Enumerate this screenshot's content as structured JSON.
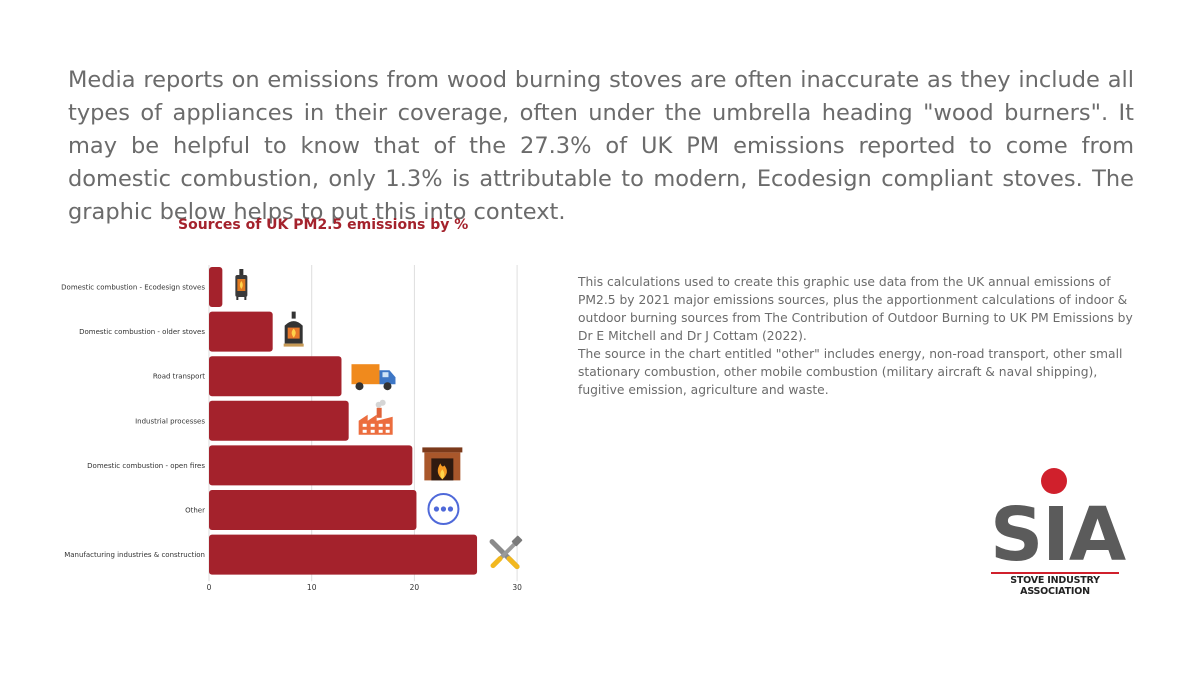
{
  "intro_text": "Media reports on emissions from wood burning stoves are often inaccurate as they include all types of appliances in their coverage, often under the umbrella heading \"wood burners\". It may be helpful to know that of the 27.3% of UK PM emissions reported to come from domestic combustion, only 1.3% is attributable to modern, Ecodesign compliant stoves. The graphic below helps to put this into context.",
  "chart_data": {
    "type": "bar",
    "orientation": "horizontal",
    "title": "Sources of UK PM2.5 emissions by %",
    "categories": [
      "Domestic combustion - Ecodesign stoves",
      "Domestic combustion - older stoves",
      "Road transport",
      "Industrial processes",
      "Domestic combustion - open fires",
      "Other",
      "Manufacturing industries & construction"
    ],
    "values": [
      1.3,
      6.2,
      12.9,
      13.6,
      19.8,
      20.2,
      26.1
    ],
    "icons": [
      "stove-icon",
      "wood-stove-icon",
      "delivery-truck-icon",
      "factory-icon",
      "fireplace-icon",
      "more-dots-icon",
      "tools-icon"
    ],
    "xlim": [
      0,
      30
    ],
    "xticks": [
      0,
      10,
      20,
      30
    ],
    "grid": true,
    "bar_color": "#a4222c"
  },
  "note": {
    "paragraph1": "This calculations used to create this graphic use data from the UK annual emissions of PM2.5 by 2021 major emissions sources, plus the apportionment calculations of indoor & outdoor burning sources from The Contribution of Outdoor Burning to UK PM Emissions by Dr E Mitchell and Dr J Cottam (2022).",
    "paragraph2": "The source in the chart entitled \"other\" includes energy, non-road transport, other small stationary combustion, other mobile combustion (military aircraft & naval shipping), fugitive emission, agriculture and waste."
  },
  "logo": {
    "letters": "SIA",
    "name": "STOVE INDUSTRY ASSOCIATION",
    "accent": "#d0202c"
  }
}
